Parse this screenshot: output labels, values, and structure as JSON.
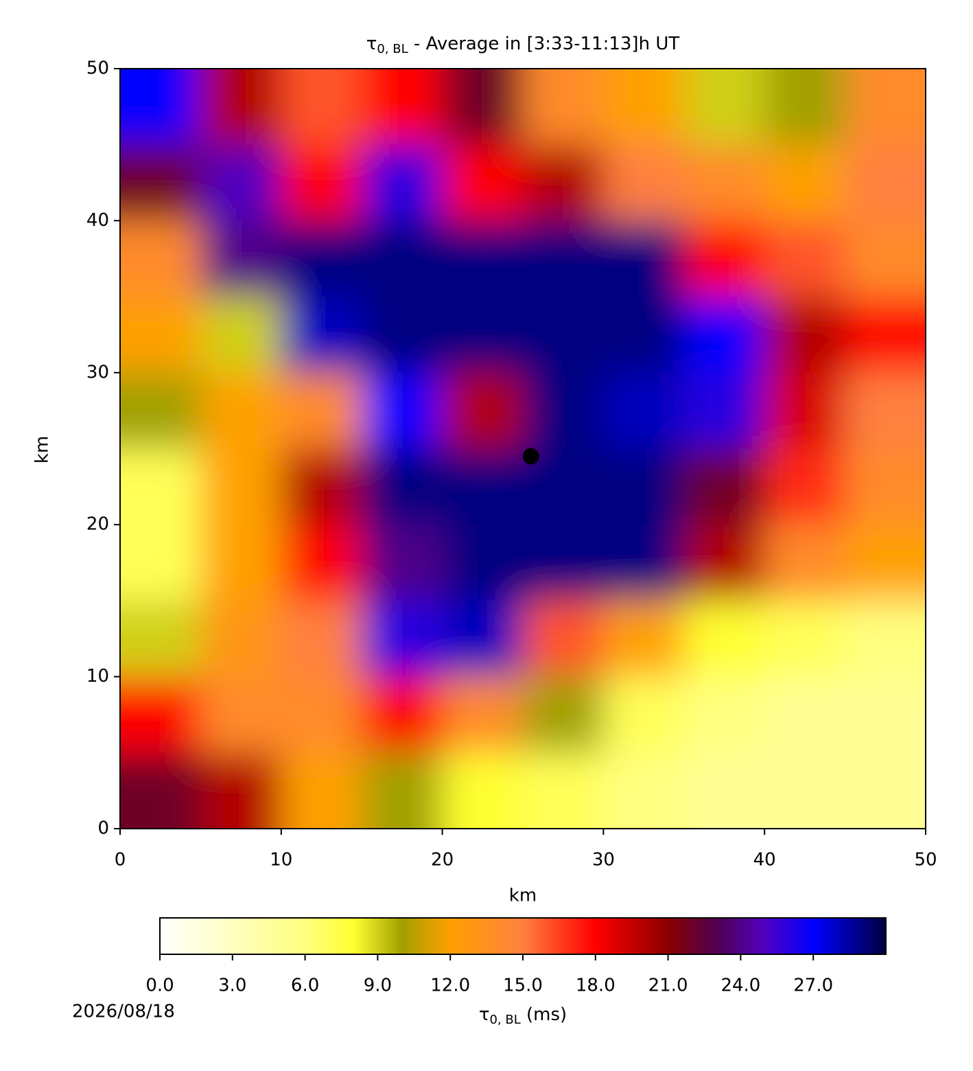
{
  "chart_data": {
    "type": "heatmap",
    "title": {
      "symbol": "τ",
      "subscript": "0, BL",
      "text": " - Average in [3:33-11:13]h UT"
    },
    "xlabel": "km",
    "ylabel": "km",
    "xlim": [
      0,
      50
    ],
    "ylim": [
      0,
      50
    ],
    "xticks": [
      0,
      10,
      20,
      30,
      40,
      50
    ],
    "yticks": [
      0,
      10,
      20,
      30,
      40,
      50
    ],
    "x": [
      2.5,
      7.5,
      12.5,
      17.5,
      22.5,
      27.5,
      32.5,
      37.5,
      42.5,
      47.5
    ],
    "y": [
      47.5,
      42.5,
      37.5,
      32.5,
      27.5,
      22.5,
      17.5,
      12.5,
      7.5,
      2.5
    ],
    "values": [
      [
        27,
        20,
        16,
        18,
        22,
        14,
        12,
        9,
        10,
        14
      ],
      [
        22,
        25,
        18,
        26,
        18,
        20,
        15,
        14,
        12,
        15
      ],
      [
        14,
        24,
        29,
        29,
        29,
        29,
        29,
        18,
        16,
        14
      ],
      [
        12,
        9,
        28,
        29,
        29,
        29,
        29,
        27,
        20,
        18
      ],
      [
        10,
        12,
        14,
        27,
        20,
        29,
        28,
        26,
        19,
        15
      ],
      [
        7,
        12,
        20,
        29,
        29,
        29,
        29,
        22,
        17,
        14
      ],
      [
        7,
        12,
        18,
        24,
        29,
        29,
        29,
        20,
        14,
        12
      ],
      [
        9,
        13,
        15,
        26,
        28,
        16,
        12,
        8,
        7,
        6
      ],
      [
        18,
        14,
        14,
        18,
        14,
        10,
        7,
        6,
        5,
        5
      ],
      [
        22,
        20,
        12,
        10,
        8,
        7,
        6,
        5,
        5,
        5
      ]
    ],
    "marker": {
      "x": 25.5,
      "y": 24.5,
      "color": "#000000"
    },
    "clim": [
      0,
      30
    ],
    "cticks": [
      {
        "value": 0,
        "label": "0.0"
      },
      {
        "value": 3,
        "label": "3.0"
      },
      {
        "value": 6,
        "label": "6.0"
      },
      {
        "value": 9,
        "label": "9.0"
      },
      {
        "value": 12,
        "label": "12.0"
      },
      {
        "value": 15,
        "label": "15.0"
      },
      {
        "value": 18,
        "label": "18.0"
      },
      {
        "value": 21,
        "label": "21.0"
      },
      {
        "value": 24,
        "label": "24.0"
      },
      {
        "value": 27,
        "label": "27.0"
      }
    ],
    "colorbar_label": {
      "symbol": "τ",
      "subscript": "0, BL",
      "text": " (ms)"
    },
    "colormap": [
      [
        0,
        "#ffffff"
      ],
      [
        6,
        "#ffff80"
      ],
      [
        8,
        "#ffff30"
      ],
      [
        10,
        "#a0a000"
      ],
      [
        12,
        "#ffa000"
      ],
      [
        15,
        "#ff8040"
      ],
      [
        18,
        "#ff0000"
      ],
      [
        21,
        "#8b0000"
      ],
      [
        23,
        "#500050"
      ],
      [
        25,
        "#5000c0"
      ],
      [
        27,
        "#0000ff"
      ],
      [
        30,
        "#000040"
      ]
    ]
  },
  "date": "2026/08/18"
}
